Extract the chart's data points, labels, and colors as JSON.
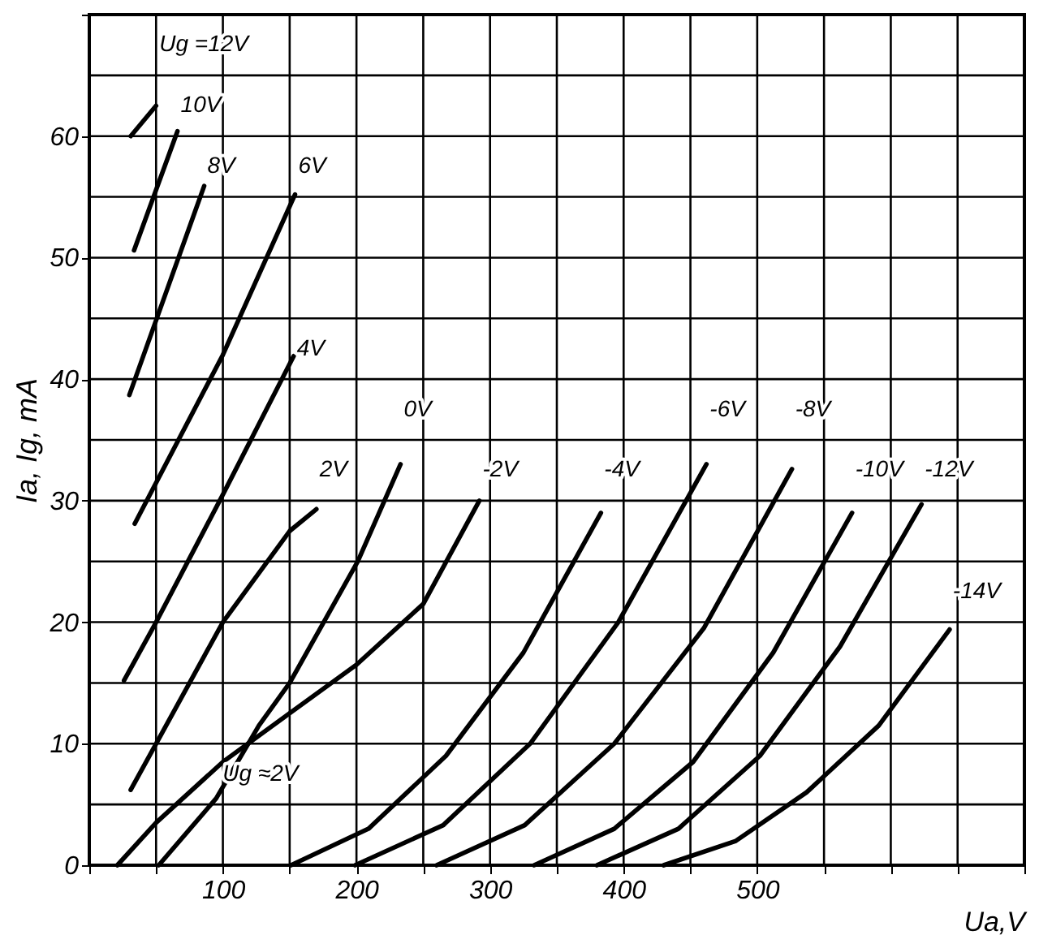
{
  "chart_data": {
    "type": "line",
    "xlabel": "Ua,V",
    "ylabel": "Ia, Ig, mA",
    "xlim": [
      0,
      700
    ],
    "ylim": [
      0,
      70
    ],
    "grid": true,
    "xticks": [
      {
        "value": 0,
        "label": null
      },
      {
        "value": 50,
        "label": null
      },
      100,
      {
        "value": 150,
        "label": null
      },
      200,
      {
        "value": 250,
        "label": null
      },
      300,
      {
        "value": 350,
        "label": null
      },
      400,
      {
        "value": 450,
        "label": null
      },
      500,
      {
        "value": 550,
        "label": null
      },
      {
        "value": 600,
        "label": null
      },
      {
        "value": 650,
        "label": null
      },
      {
        "value": 700,
        "label": null
      }
    ],
    "yticks": [
      0,
      {
        "value": 5,
        "label": null
      },
      10,
      {
        "value": 15,
        "label": null
      },
      20,
      {
        "value": 25,
        "label": null
      },
      30,
      {
        "value": 35,
        "label": null
      },
      40,
      {
        "value": 45,
        "label": null
      },
      50,
      {
        "value": 55,
        "label": null
      },
      60,
      {
        "value": 65,
        "label": null
      },
      {
        "value": 70,
        "label": null
      }
    ],
    "series": [
      {
        "name": "Ug =12V",
        "color": "#000000",
        "x": [
          31,
          50
        ],
        "values": [
          60,
          62.5
        ]
      },
      {
        "name": "10V",
        "color": "#000000",
        "x": [
          33.5,
          66
        ],
        "values": [
          50.6,
          60.4
        ]
      },
      {
        "name": "8V",
        "color": "#000000",
        "x": [
          30,
          86
        ],
        "values": [
          38.7,
          55.9
        ]
      },
      {
        "name": "6V",
        "color": "#000000",
        "x": [
          34,
          100,
          154
        ],
        "values": [
          28.1,
          42,
          55.2
        ]
      },
      {
        "name": "4V",
        "color": "#000000",
        "x": [
          26,
          50,
          100,
          153
        ],
        "values": [
          15.2,
          20,
          30.5,
          41.9
        ]
      },
      {
        "name": "2V",
        "color": "#000000",
        "x": [
          31,
          50,
          100,
          150,
          170
        ],
        "values": [
          6.2,
          10,
          20,
          27.5,
          29.3
        ]
      },
      {
        "name": "0V",
        "color": "#000000",
        "x": [
          52,
          95,
          127,
          150,
          201,
          233
        ],
        "values": [
          0,
          5.5,
          11.5,
          15,
          25,
          33
        ]
      },
      {
        "name": "-2V",
        "color": "#000000",
        "x": [
          21,
          50,
          100,
          150,
          200,
          250,
          292
        ],
        "values": [
          0,
          3.5,
          8.5,
          12.5,
          16.5,
          21.5,
          30
        ]
      },
      {
        "name": "-4V",
        "color": "#000000",
        "x": [
          151,
          209,
          267,
          325,
          383
        ],
        "values": [
          0,
          3,
          9,
          17.5,
          29
        ]
      },
      {
        "name": "-6V",
        "color": "#000000",
        "x": [
          199,
          265,
          330,
          396,
          462
        ],
        "values": [
          0,
          3.3,
          10,
          20,
          33
        ]
      },
      {
        "name": "-8V",
        "color": "#000000",
        "x": [
          260,
          326,
          393,
          460,
          526
        ],
        "values": [
          0,
          3.3,
          10,
          19.5,
          32.6
        ]
      },
      {
        "name": "-10V",
        "color": "#000000",
        "x": [
          333,
          393,
          452,
          512,
          571
        ],
        "values": [
          0,
          3,
          8.5,
          17.5,
          29
        ]
      },
      {
        "name": "-12V",
        "color": "#000000",
        "x": [
          380,
          441,
          502,
          562,
          623
        ],
        "values": [
          0,
          3,
          9,
          18,
          29.7
        ]
      },
      {
        "name": "-14V",
        "color": "#000000",
        "x": [
          430,
          484,
          537,
          591,
          644
        ],
        "values": [
          0,
          2,
          6,
          11.5,
          19.4
        ]
      }
    ],
    "annotations": [
      {
        "text": "Ug ≈2V",
        "x": 95,
        "y": 5.5
      }
    ]
  }
}
